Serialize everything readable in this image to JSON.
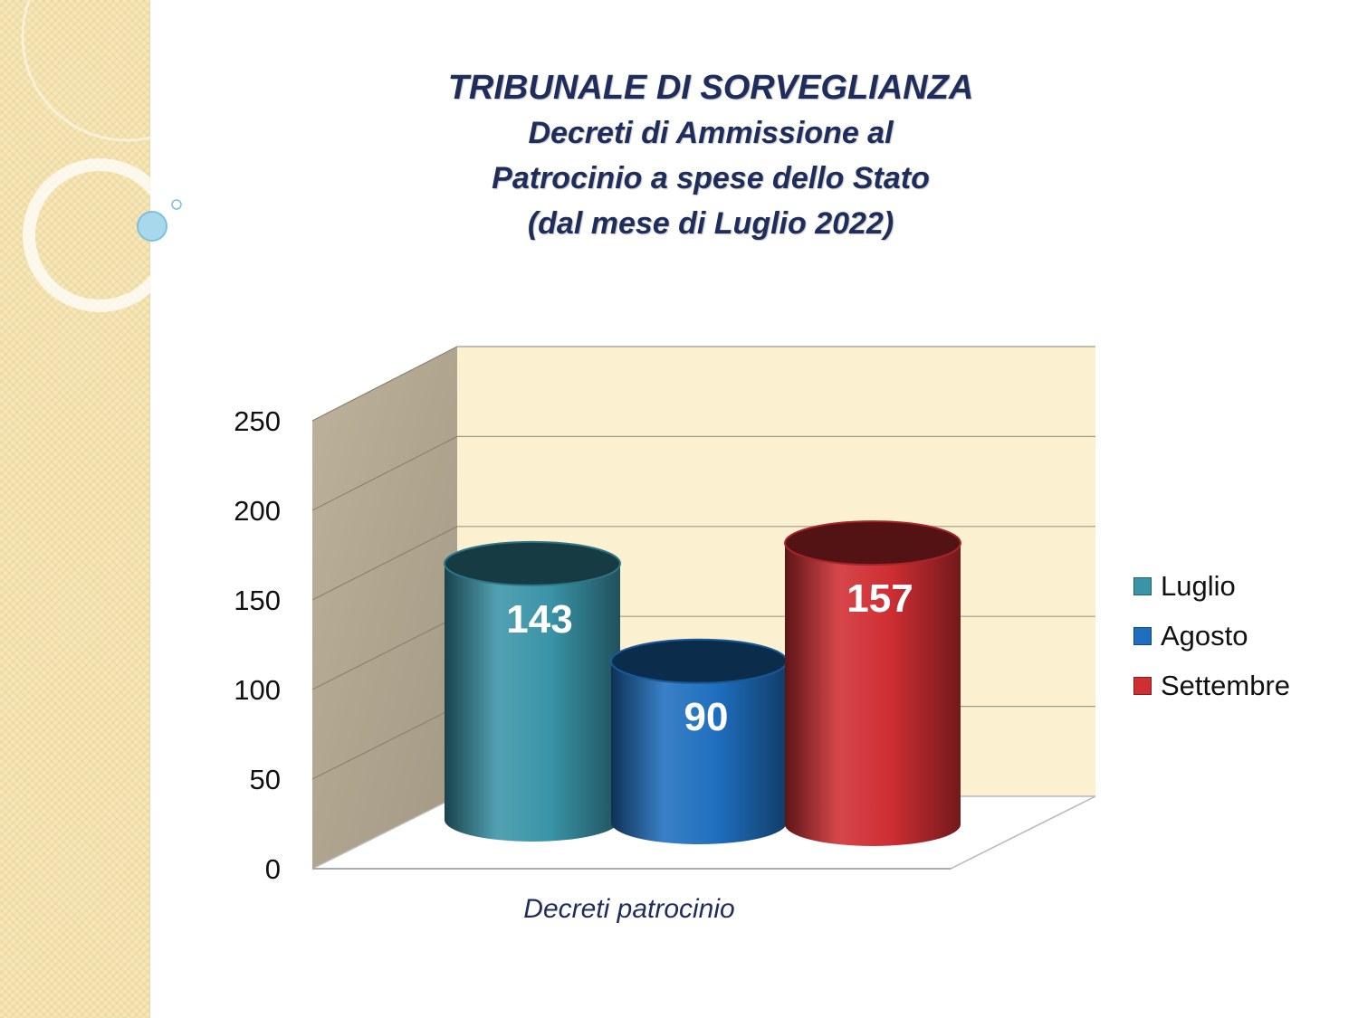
{
  "title_lines": [
    "TRIBUNALE DI SORVEGLIANZA",
    "Decreti di Ammissione al",
    "Patrocinio a spese dello Stato",
    "(dal mese di Luglio 2022)"
  ],
  "chart_data": {
    "type": "bar",
    "title": "TRIBUNALE DI SORVEGLIANZA Decreti di Ammissione al Patrocinio a spese dello Stato (dal mese di Luglio 2022)",
    "categories": [
      "Decreti patrocinio"
    ],
    "series": [
      {
        "name": "Luglio",
        "values": [
          143
        ],
        "color": "#3a94a8"
      },
      {
        "name": "Agosto",
        "values": [
          90
        ],
        "color": "#1f6fbf"
      },
      {
        "name": "Settembre",
        "values": [
          157
        ],
        "color": "#cf2e33"
      }
    ],
    "yticks": [
      "0",
      "50",
      "100",
      "150",
      "200",
      "250"
    ],
    "ylim": [
      0,
      250
    ],
    "grid": true,
    "legend_position": "right",
    "data_labels": true,
    "style": "3d-cylinder"
  }
}
